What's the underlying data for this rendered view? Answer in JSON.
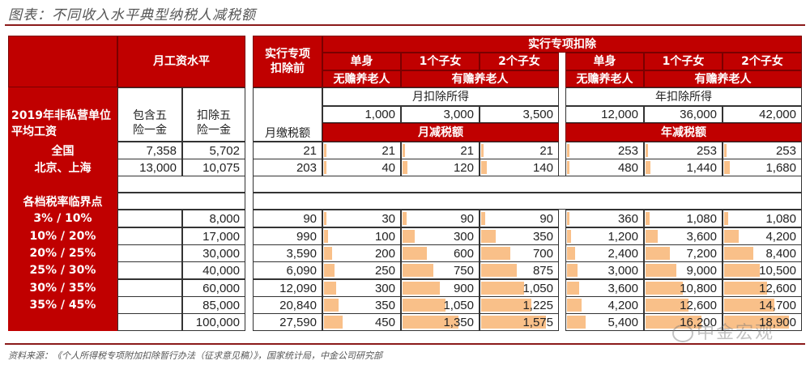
{
  "title": "图表：不同收入水平典型纳税人减税额",
  "source": "资料来源：《个人所得税专项附加扣除暂行办法（征求意见稿）》，国家统计局，中金公司研究部",
  "watermark": "中金宏观",
  "colors": {
    "header_red": "#c00000",
    "bar": "#f9c089",
    "rule": "#8b1a1a"
  },
  "header": {
    "monthly_wage": "月工资水平",
    "before_deduction": "实行专项\n扣除前",
    "special_deduction": "实行专项扣除",
    "single_top": "单身",
    "single_bottom": "无赡养老人",
    "one_child": "1个子女",
    "two_children": "2个子女",
    "with_elderly": "有赡养老人",
    "monthly_deduct_income": "月扣除所得",
    "annual_deduct_income": "年扣除所得",
    "monthly_tax_cut": "月减税额",
    "annual_tax_cut": "年减税额",
    "avg_wage_label": "2019年非私营单位平均工资",
    "incl_insurance": "包含五\n险一金",
    "excl_insurance": "扣除五\n险一金",
    "monthly_tax": "月缴税额",
    "brackets_label": "各档税率临界点"
  },
  "deductions": {
    "monthly": [
      "1,000",
      "3,000",
      "3,500"
    ],
    "annual": [
      "12,000",
      "36,000",
      "42,000"
    ]
  },
  "rows": [
    {
      "label": "全国",
      "incl": "7,358",
      "excl": "5,702",
      "tax": "21",
      "m": [
        "21",
        "21",
        "21"
      ],
      "y": [
        "253",
        "253",
        "253"
      ]
    },
    {
      "label": "北京、上海",
      "incl": "13,000",
      "excl": "10,075",
      "tax": "203",
      "m": [
        "40",
        "120",
        "140"
      ],
      "y": [
        "480",
        "1,440",
        "1,680"
      ]
    },
    {
      "label": "3% / 10%",
      "incl": "",
      "excl": "8,000",
      "tax": "90",
      "m": [
        "30",
        "90",
        "90"
      ],
      "y": [
        "360",
        "1,080",
        "1,080"
      ]
    },
    {
      "label": "10% / 20%",
      "incl": "",
      "excl": "17,000",
      "tax": "990",
      "m": [
        "100",
        "300",
        "350"
      ],
      "y": [
        "1,200",
        "3,600",
        "4,200"
      ]
    },
    {
      "label": "20% / 25%",
      "incl": "",
      "excl": "30,000",
      "tax": "3,590",
      "m": [
        "200",
        "600",
        "700"
      ],
      "y": [
        "2,400",
        "7,200",
        "8,400"
      ]
    },
    {
      "label": "25% / 30%",
      "incl": "",
      "excl": "40,000",
      "tax": "6,090",
      "m": [
        "250",
        "750",
        "875"
      ],
      "y": [
        "3,000",
        "9,000",
        "10,500"
      ]
    },
    {
      "label": "30% / 35%",
      "incl": "",
      "excl": "60,000",
      "tax": "12,090",
      "m": [
        "300",
        "900",
        "1,050"
      ],
      "y": [
        "3,600",
        "10,800",
        "12,600"
      ]
    },
    {
      "label": "35% / 45%",
      "incl": "",
      "excl": "85,000",
      "tax": "20,840",
      "m": [
        "350",
        "1,050",
        "1,225"
      ],
      "y": [
        "4,200",
        "12,600",
        "14,700"
      ]
    },
    {
      "label": "",
      "incl": "",
      "excl": "100,000",
      "tax": "27,590",
      "m": [
        "450",
        "1,350",
        "1,575"
      ],
      "y": [
        "5,400",
        "16,200",
        "18,900"
      ]
    }
  ]
}
